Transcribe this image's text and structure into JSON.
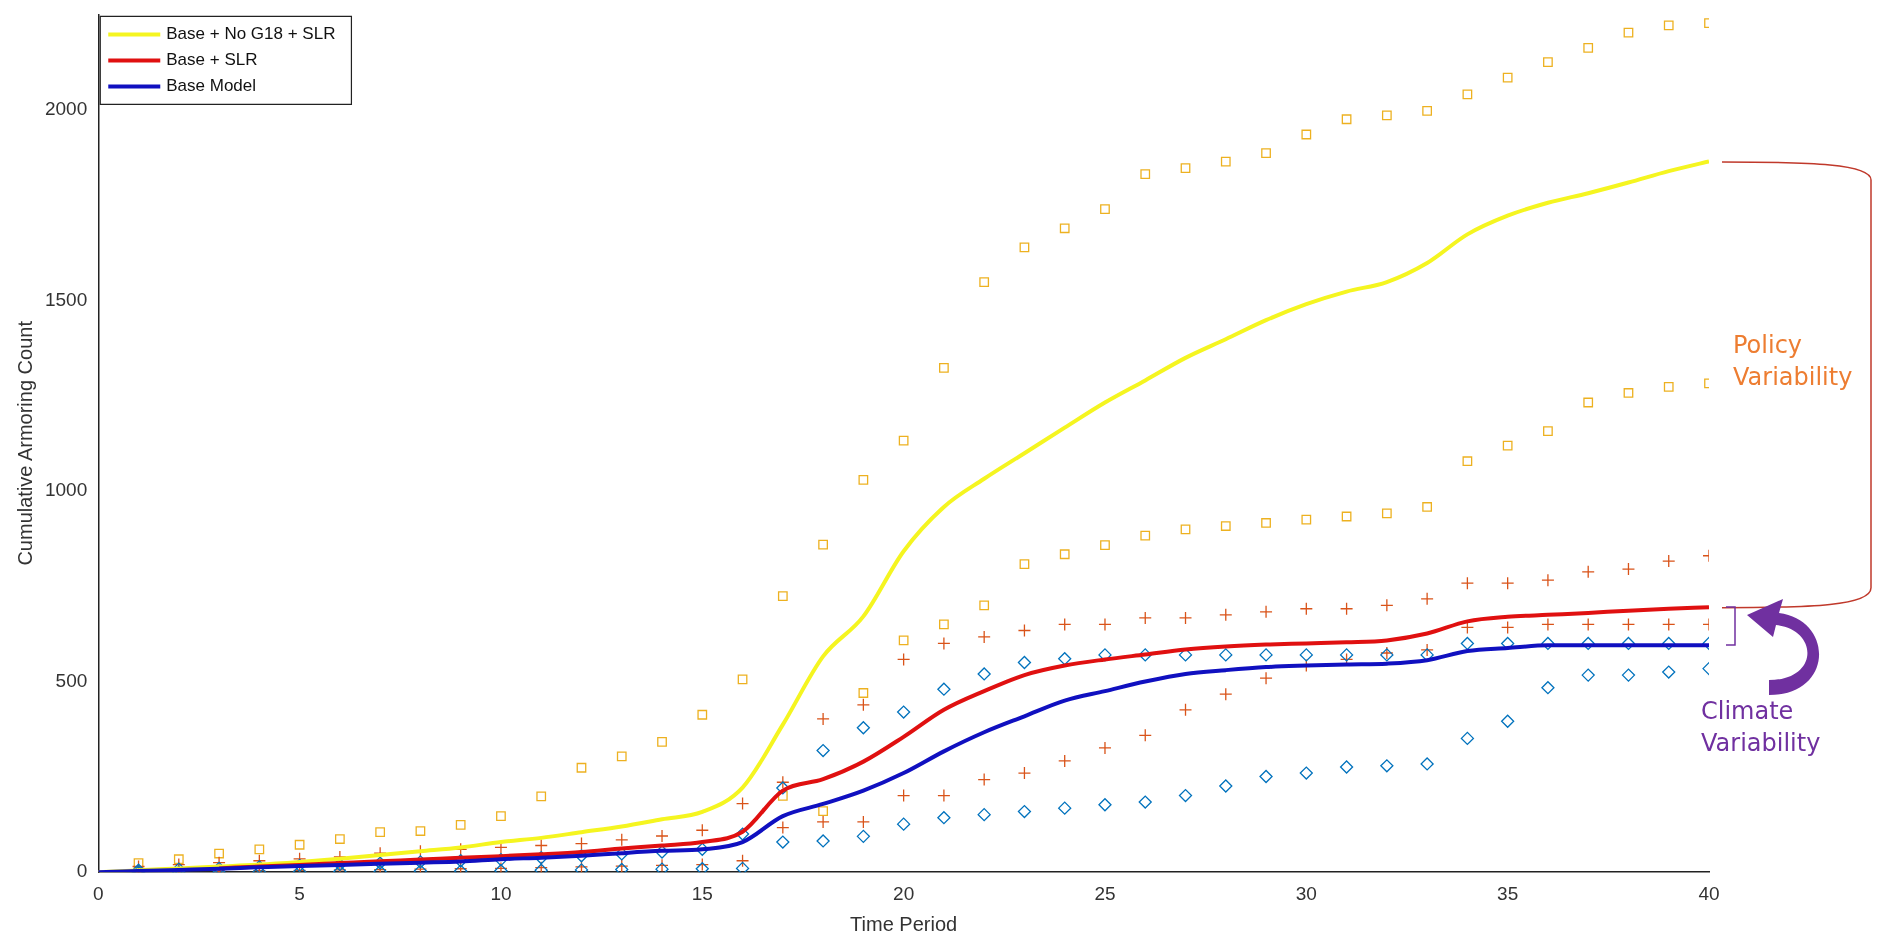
{
  "chart_data": {
    "type": "scatter",
    "xlabel": "Time Period",
    "ylabel": "Cumulative Armoring Count",
    "xlim": [
      0,
      40
    ],
    "xticks": [
      0,
      5,
      10,
      15,
      20,
      25,
      30,
      35,
      40
    ],
    "ylim": [
      0,
      2250
    ],
    "yticks": [
      0,
      500,
      1000,
      1500,
      2000
    ],
    "grid": false,
    "legend": "top left",
    "annotations": [
      "Policy Variability",
      "Climate Variability"
    ],
    "series": [
      {
        "marker": "square",
        "color": "#edb120",
        "x": [
          1,
          2,
          3,
          4,
          5,
          6,
          7,
          8,
          9,
          10,
          11,
          12,
          13,
          14,
          15,
          16,
          17,
          17,
          18,
          18,
          19,
          19,
          20,
          20,
          21,
          21,
          22,
          22,
          23,
          23,
          24,
          24,
          25,
          25,
          26,
          26,
          27,
          27,
          28,
          28,
          29,
          29,
          30,
          30,
          31,
          31,
          32,
          32,
          33,
          33,
          34,
          34,
          35,
          35,
          36,
          36,
          37,
          37,
          38,
          38,
          39,
          39,
          40,
          40
        ],
        "values": [
          24,
          34,
          49,
          60,
          72,
          87,
          105,
          108,
          124,
          147,
          199,
          274,
          304,
          342,
          413,
          506,
          724,
          200,
          859,
          160,
          1029,
          470,
          1132,
          608,
          1323,
          650,
          1548,
          700,
          1639,
          808,
          1689,
          834,
          1739,
          858,
          1831,
          883,
          1847,
          899,
          1864,
          908,
          1886,
          916,
          1935,
          925,
          1975,
          933,
          1985,
          941,
          1997,
          958,
          2040,
          1078,
          2084,
          1119,
          2125,
          1157,
          2162,
          1232,
          2202,
          1257,
          2221,
          1273,
          2227,
          1282
        ]
      },
      {
        "marker": "cross",
        "color": "#d95319",
        "x": [
          1,
          1,
          2,
          2,
          3,
          3,
          4,
          4,
          5,
          5,
          6,
          6,
          7,
          7,
          8,
          8,
          9,
          9,
          10,
          10,
          11,
          11,
          12,
          12,
          13,
          13,
          14,
          14,
          15,
          15,
          16,
          16,
          17,
          17,
          18,
          18,
          19,
          19,
          20,
          20,
          21,
          21,
          22,
          22,
          23,
          23,
          24,
          24,
          25,
          25,
          26,
          26,
          27,
          27,
          28,
          28,
          29,
          29,
          30,
          30,
          31,
          31,
          32,
          32,
          33,
          33,
          34,
          34,
          35,
          35,
          36,
          36,
          37,
          37,
          38,
          38,
          39,
          39,
          40,
          40
        ],
        "values": [
          15,
          1,
          20,
          2,
          25,
          3,
          30,
          4,
          35,
          5,
          40,
          6,
          50,
          7,
          55,
          8,
          60,
          9,
          65,
          10,
          70,
          12,
          75,
          14,
          85,
          16,
          95,
          18,
          110,
          20,
          180,
          30,
          236,
          117,
          402,
          132,
          439,
          132,
          558,
          201,
          600,
          201,
          617,
          243,
          634,
          260,
          650,
          292,
          650,
          326,
          667,
          359,
          667,
          426,
          675,
          467,
          683,
          509,
          691,
          542,
          691,
          558,
          700,
          575,
          717,
          583,
          758,
          642,
          758,
          642,
          766,
          650,
          788,
          650,
          795,
          650,
          816,
          650,
          830,
          650
        ]
      },
      {
        "marker": "diamond",
        "color": "#0072bd",
        "x": [
          1,
          1,
          2,
          2,
          3,
          3,
          4,
          4,
          5,
          5,
          6,
          6,
          7,
          7,
          8,
          8,
          9,
          9,
          10,
          10,
          11,
          11,
          12,
          12,
          13,
          13,
          14,
          14,
          15,
          15,
          16,
          16,
          17,
          17,
          18,
          18,
          19,
          19,
          20,
          20,
          21,
          21,
          22,
          22,
          23,
          23,
          24,
          24,
          25,
          25,
          26,
          26,
          27,
          27,
          28,
          28,
          29,
          29,
          30,
          30,
          31,
          31,
          32,
          32,
          33,
          33,
          34,
          34,
          35,
          35,
          36,
          36,
          37,
          37,
          38,
          38,
          39,
          39,
          40,
          40
        ],
        "values": [
          5,
          0,
          8,
          0,
          10,
          0,
          14,
          1,
          18,
          1,
          20,
          2,
          24,
          2,
          27,
          3,
          30,
          3,
          33,
          4,
          38,
          5,
          43,
          6,
          48,
          7,
          53,
          8,
          60,
          9,
          100,
          10,
          221,
          79,
          319,
          82,
          379,
          94,
          420,
          126,
          480,
          143,
          520,
          151,
          550,
          159,
          560,
          168,
          570,
          177,
          570,
          184,
          570,
          201,
          570,
          226,
          570,
          251,
          570,
          260,
          570,
          276,
          570,
          279,
          570,
          284,
          600,
          351,
          600,
          396,
          600,
          484,
          600,
          517,
          600,
          517,
          600,
          525,
          600,
          534
        ]
      },
      {
        "type": "line",
        "name": "Base + No G18 + SLR",
        "color": "#f5f520",
        "x": [
          0,
          1,
          2,
          3,
          4,
          5,
          6,
          7,
          8,
          9,
          10,
          11,
          12,
          13,
          14,
          15,
          16,
          17,
          18,
          19,
          20,
          21,
          22,
          23,
          24,
          25,
          26,
          27,
          28,
          29,
          30,
          31,
          32,
          33,
          34,
          35,
          36,
          37,
          38,
          39,
          40
        ],
        "values": [
          0,
          5,
          10,
          15,
          20,
          27,
          35,
          45,
          55,
          65,
          79,
          90,
          105,
          120,
          139,
          158,
          222,
          387,
          566,
          671,
          842,
          958,
          1032,
          1099,
          1166,
          1232,
          1290,
          1349,
          1398,
          1448,
          1490,
          1523,
          1548,
          1598,
          1673,
          1722,
          1756,
          1781,
          1809,
          1839,
          1864
        ]
      },
      {
        "type": "line",
        "name": "Base + SLR",
        "color": "#e01010",
        "x": [
          3,
          4,
          5,
          6,
          7,
          8,
          9,
          10,
          11,
          12,
          13,
          14,
          15,
          16,
          17,
          18,
          19,
          20,
          21,
          22,
          23,
          24,
          25,
          26,
          27,
          28,
          29,
          30,
          31,
          32,
          33,
          34,
          35,
          36,
          37,
          38,
          39,
          40
        ],
        "values": [
          10,
          15,
          19,
          24,
          29,
          33,
          38,
          42,
          47,
          53,
          62,
          70,
          79,
          106,
          214,
          244,
          290,
          355,
          426,
          475,
          517,
          542,
          558,
          571,
          584,
          592,
          597,
          600,
          603,
          608,
          626,
          658,
          670,
          675,
          680,
          686,
          691,
          695
        ]
      },
      {
        "type": "line",
        "name": "Base Model",
        "color": "#1010c0",
        "x": [
          0,
          1,
          2,
          3,
          4,
          5,
          6,
          7,
          8,
          9,
          10,
          11,
          12,
          13,
          14,
          15,
          16,
          17,
          18,
          19,
          20,
          21,
          22,
          23,
          24,
          25,
          26,
          27,
          28,
          29,
          30,
          31,
          32,
          33,
          34,
          35,
          36,
          37,
          38,
          39,
          40
        ],
        "values": [
          0,
          3,
          6,
          9,
          13,
          16,
          19,
          22,
          25,
          28,
          34,
          38,
          43,
          50,
          56,
          60,
          79,
          147,
          179,
          214,
          260,
          317,
          367,
          409,
          450,
          475,
          500,
          520,
          530,
          538,
          542,
          545,
          547,
          556,
          580,
          588,
          595,
          595,
          595,
          595,
          595
        ]
      }
    ]
  }
}
